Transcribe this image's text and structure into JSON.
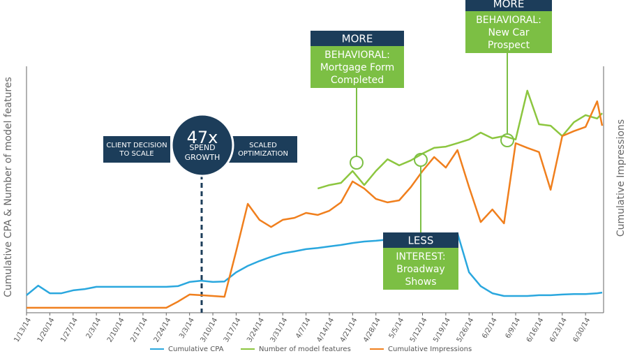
{
  "chart_data": {
    "type": "line",
    "y_label": "Cumulative CPA & Number of model features",
    "y2_label": "Cumulative Impressions",
    "x": [
      0,
      3.5,
      7,
      10.5,
      14,
      17.5,
      21,
      24.5,
      28,
      31.5,
      35,
      38.5,
      42,
      45.5,
      49,
      52.5,
      56,
      59.5,
      63,
      66.5,
      70,
      73.5,
      77,
      80.5,
      84,
      87.5,
      91,
      94.5,
      98,
      101.5,
      105,
      108.5,
      112,
      115.5,
      119,
      122.5,
      126,
      129.5,
      133,
      136.5,
      140,
      143.5,
      147,
      150.5,
      154,
      157.5,
      161,
      164.5,
      168,
      171.5,
      173
    ],
    "xlim": [
      0,
      173
    ],
    "xticks": [
      {
        "value": 0,
        "label": "1/13/14"
      },
      {
        "value": 7,
        "label": "1/20/14"
      },
      {
        "value": 14,
        "label": "1/27/14"
      },
      {
        "value": 21,
        "label": "2/3/14"
      },
      {
        "value": 28,
        "label": "2/10/14"
      },
      {
        "value": 35,
        "label": "2/17/14"
      },
      {
        "value": 42,
        "label": "2/24/14"
      },
      {
        "value": 49,
        "label": "3/3/14"
      },
      {
        "value": 56,
        "label": "3/10/14"
      },
      {
        "value": 63,
        "label": "3/17/14"
      },
      {
        "value": 70,
        "label": "3/24/14"
      },
      {
        "value": 77,
        "label": "3/31/14"
      },
      {
        "value": 84,
        "label": "4/7/14"
      },
      {
        "value": 91,
        "label": "4/14/14"
      },
      {
        "value": 98,
        "label": "4/21/14"
      },
      {
        "value": 105,
        "label": "4/28/14"
      },
      {
        "value": 112,
        "label": "5/5/14"
      },
      {
        "value": 119,
        "label": "5/12/14"
      },
      {
        "value": 126,
        "label": "5/19/14"
      },
      {
        "value": 133,
        "label": "5/26/14"
      },
      {
        "value": 140,
        "label": "6/2/14"
      },
      {
        "value": 147,
        "label": "6/9/14"
      },
      {
        "value": 154,
        "label": "6/16/14"
      },
      {
        "value": 161,
        "label": "6/23/14"
      },
      {
        "value": 168,
        "label": "6/30/14"
      }
    ],
    "ylim": [
      0,
      100
    ],
    "series": [
      {
        "name": "Cumulative CPA",
        "color": "#2aa7de",
        "values": [
          7.1,
          11.0,
          7.9,
          7.9,
          9.1,
          9.6,
          10.5,
          10.5,
          10.5,
          10.5,
          10.5,
          10.5,
          10.5,
          10.8,
          12.5,
          13.0,
          12.5,
          12.7,
          16.4,
          19.0,
          21.0,
          22.7,
          24.1,
          24.9,
          25.8,
          26.3,
          26.9,
          27.5,
          28.3,
          28.9,
          29.2,
          29.7,
          30.3,
          30.9,
          31.2,
          31.7,
          32.0,
          32.3,
          16.4,
          10.8,
          7.9,
          6.8,
          6.8,
          6.8,
          7.1,
          7.1,
          7.4,
          7.6,
          7.6,
          7.9,
          8.2
        ]
      },
      {
        "name": "Number of model features",
        "color": "#8cc63f",
        "values": [
          null,
          null,
          null,
          null,
          null,
          null,
          null,
          null,
          null,
          null,
          null,
          null,
          null,
          null,
          null,
          null,
          null,
          null,
          null,
          null,
          null,
          null,
          null,
          null,
          null,
          50.4,
          51.8,
          52.7,
          57.5,
          51.8,
          57.5,
          62.3,
          59.8,
          61.8,
          64.6,
          66.9,
          67.4,
          68.8,
          70.3,
          73.1,
          70.8,
          71.7,
          70.3,
          90.1,
          76.5,
          75.9,
          71.7,
          77.3,
          80.2,
          78.8,
          81.0
        ]
      },
      {
        "name": "Cumulative Impressions",
        "color": "#f07f1d",
        "values": [
          2.0,
          2.0,
          2.0,
          2.0,
          2.0,
          2.0,
          2.0,
          2.0,
          2.0,
          2.0,
          2.0,
          2.0,
          2.0,
          4.5,
          7.4,
          7.1,
          6.8,
          6.5,
          24.9,
          44.2,
          37.7,
          34.8,
          37.7,
          38.5,
          40.5,
          39.7,
          41.4,
          44.8,
          53.3,
          50.4,
          46.2,
          44.8,
          45.6,
          51.0,
          57.5,
          63.2,
          58.9,
          66.0,
          51.0,
          36.8,
          41.9,
          36.3,
          68.8,
          66.9,
          65.2,
          49.9,
          71.7,
          73.7,
          75.4,
          85.8,
          75.9
        ]
      }
    ],
    "client_decision": [
      "CLIENT DECISION",
      "TO SCALE"
    ],
    "spend_growth": [
      "47x",
      "SPEND",
      "GROWTH"
    ],
    "scaled_optimization": [
      "SCALED",
      "OPTIMIZATION"
    ],
    "callouts": [
      {
        "header": "MORE",
        "lines": [
          "BEHAVIORAL:",
          "Mortgage Form",
          "Completed"
        ]
      },
      {
        "header": "LESS",
        "lines": [
          "INTEREST:",
          "Broadway",
          "Shows"
        ]
      },
      {
        "header": "MORE",
        "lines": [
          "BEHAVIORAL:",
          "New Car",
          "Prospect"
        ]
      }
    ]
  }
}
